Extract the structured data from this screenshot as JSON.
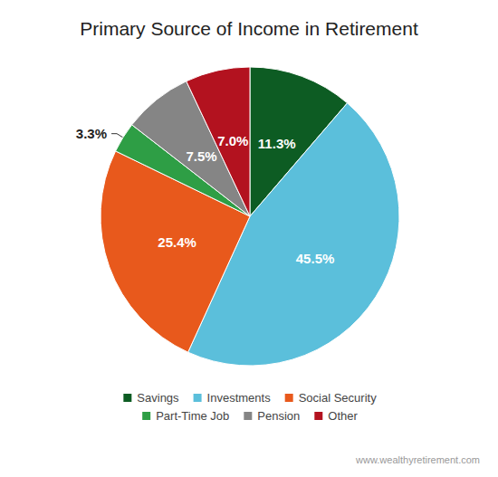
{
  "chart_data": {
    "type": "pie",
    "title": "Primary Source of Income in Retirement",
    "categories": [
      "Savings",
      "Investments",
      "Social Security",
      "Part-Time Job",
      "Pension",
      "Other"
    ],
    "values": [
      11.3,
      45.5,
      25.4,
      3.3,
      7.5,
      7.0
    ],
    "value_labels": [
      "11.3%",
      "45.5%",
      "25.4%",
      "3.3%",
      "7.5%",
      "7.0%"
    ],
    "colors": [
      "#0d5c23",
      "#5bbfdb",
      "#e8591c",
      "#2e9e45",
      "#858585",
      "#b3121f"
    ],
    "data_labels": true,
    "legend": "bottom",
    "annotations": [
      "www.wealthyretirement.com"
    ]
  }
}
